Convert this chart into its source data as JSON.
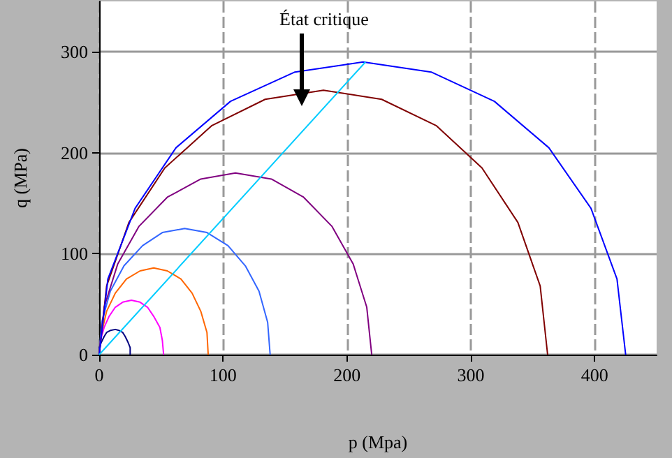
{
  "chart_data": {
    "type": "line",
    "xlabel": "p (Mpa)",
    "ylabel": "q (MPa)",
    "xlim": [
      0,
      450
    ],
    "ylim": [
      0,
      350
    ],
    "xticks": [
      0,
      100,
      200,
      300,
      400
    ],
    "yticks": [
      0,
      100,
      200,
      300
    ],
    "grid": true,
    "marker": "none",
    "annotations": [
      "État critique"
    ],
    "series": [
      {
        "color": "#000080",
        "x": [
          0,
          0,
          2,
          4,
          6,
          9,
          13,
          16,
          19,
          21,
          23,
          25,
          25
        ],
        "values": [
          0,
          7,
          13,
          18,
          22,
          24,
          25,
          24,
          22,
          18,
          13,
          7,
          0
        ]
      },
      {
        "color": "#ff00ff",
        "x": [
          0,
          1,
          4,
          8,
          13,
          19,
          26,
          33,
          39,
          44,
          49,
          51,
          52
        ],
        "values": [
          0,
          14,
          27,
          38,
          47,
          52,
          54,
          52,
          47,
          38,
          27,
          14,
          0
        ]
      },
      {
        "color": "#ff6600",
        "x": [
          0,
          2,
          6,
          13,
          22,
          33,
          44,
          55,
          66,
          75,
          82,
          87,
          88
        ],
        "values": [
          0,
          22,
          43,
          61,
          75,
          83,
          86,
          83,
          75,
          61,
          43,
          22,
          0
        ]
      },
      {
        "color": "#3366ff",
        "x": [
          0,
          2,
          9,
          20,
          35,
          51,
          69,
          87,
          104,
          118,
          129,
          136,
          138
        ],
        "values": [
          0,
          32,
          63,
          88,
          108,
          121,
          125,
          121,
          108,
          88,
          63,
          32,
          0
        ]
      },
      {
        "color": "#800080",
        "x": [
          0,
          4,
          15,
          32,
          55,
          82,
          110,
          139,
          165,
          188,
          205,
          216,
          220
        ],
        "values": [
          0,
          47,
          90,
          127,
          156,
          174,
          180,
          174,
          156,
          127,
          90,
          47,
          0
        ]
      },
      {
        "color": "#800000",
        "x": [
          0,
          6,
          24,
          53,
          91,
          134,
          181,
          228,
          272,
          309,
          338,
          356,
          362
        ],
        "values": [
          0,
          68,
          131,
          185,
          227,
          253,
          262,
          253,
          227,
          185,
          131,
          68,
          0
        ]
      },
      {
        "color": "#0000ff",
        "x": [
          0,
          7,
          29,
          62,
          106,
          158,
          213,
          268,
          319,
          363,
          397,
          418,
          425
        ],
        "values": [
          0,
          75,
          145,
          205,
          251,
          280,
          290,
          280,
          251,
          205,
          145,
          75,
          0
        ]
      },
      {
        "color": "#00ccff",
        "x": [
          0,
          215
        ],
        "values": [
          0,
          290
        ]
      }
    ]
  }
}
